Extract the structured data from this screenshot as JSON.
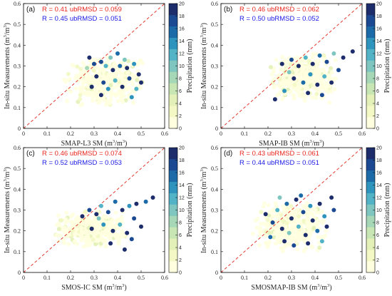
{
  "colors": {
    "stat_red": "#e8261e",
    "stat_blue": "#1a1ae6",
    "diagonal": "#e03a2e",
    "colormap": [
      "#ffffe0",
      "#f3f8c4",
      "#e3f1b8",
      "#c8e6b4",
      "#a6d8b8",
      "#7ec6bf",
      "#52b3c6",
      "#2e93bd",
      "#1d6aa8",
      "#1b4a92",
      "#1d2d6b"
    ]
  },
  "colorbar": {
    "label": "Precipitation (mm)",
    "ticks": [
      "0",
      "2",
      "4",
      "6",
      "8",
      "10",
      "12",
      "14",
      "16",
      "18",
      "20"
    ]
  },
  "chart_data": [
    {
      "type": "scatter",
      "panel_label": "(a)",
      "xlabel_main": "SMAP-L3 SM (m",
      "ylabel_main": "In-situ Measurements (m",
      "unit_sup": "3",
      "unit_mid": "/m",
      "unit_end": ")",
      "stat_red": "R = 0.41   ubRMSD = 0.059",
      "stat_blue": "R = 0.45   ubRMSD = 0.051",
      "xlim": [
        0,
        0.6
      ],
      "ylim": [
        0,
        0.6
      ],
      "xticks": [
        "0",
        "0.1",
        "0.2",
        "0.3",
        "0.4",
        "0.5",
        "0.6"
      ],
      "yticks": [
        "0",
        "0.1",
        "0.2",
        "0.3",
        "0.4",
        "0.5",
        "0.6"
      ],
      "cluster": {
        "x_range": [
          0.17,
          0.52
        ],
        "y_range": [
          0.1,
          0.35
        ]
      },
      "colored_points": [
        {
          "x": 0.28,
          "y": 0.34,
          "p": 19
        },
        {
          "x": 0.3,
          "y": 0.31,
          "p": 17
        },
        {
          "x": 0.33,
          "y": 0.32,
          "p": 18
        },
        {
          "x": 0.35,
          "y": 0.3,
          "p": 12
        },
        {
          "x": 0.38,
          "y": 0.28,
          "p": 20
        },
        {
          "x": 0.41,
          "y": 0.3,
          "p": 16
        },
        {
          "x": 0.43,
          "y": 0.33,
          "p": 9
        },
        {
          "x": 0.44,
          "y": 0.29,
          "p": 20
        },
        {
          "x": 0.47,
          "y": 0.31,
          "p": 14
        },
        {
          "x": 0.49,
          "y": 0.26,
          "p": 19
        },
        {
          "x": 0.31,
          "y": 0.25,
          "p": 20
        },
        {
          "x": 0.34,
          "y": 0.22,
          "p": 18
        },
        {
          "x": 0.36,
          "y": 0.19,
          "p": 13
        },
        {
          "x": 0.39,
          "y": 0.23,
          "p": 11
        },
        {
          "x": 0.42,
          "y": 0.2,
          "p": 20
        },
        {
          "x": 0.45,
          "y": 0.24,
          "p": 17
        },
        {
          "x": 0.48,
          "y": 0.19,
          "p": 12
        },
        {
          "x": 0.5,
          "y": 0.22,
          "p": 20
        },
        {
          "x": 0.37,
          "y": 0.34,
          "p": 10
        },
        {
          "x": 0.4,
          "y": 0.36,
          "p": 15
        },
        {
          "x": 0.33,
          "y": 0.16,
          "p": 19
        },
        {
          "x": 0.46,
          "y": 0.15,
          "p": 14
        },
        {
          "x": 0.27,
          "y": 0.29,
          "p": 8
        },
        {
          "x": 0.29,
          "y": 0.2,
          "p": 20
        }
      ]
    },
    {
      "type": "scatter",
      "panel_label": "(b)",
      "xlabel_main": "SMAP-IB SM (m",
      "ylabel_main": "In-situ Measurements (m",
      "unit_sup": "3",
      "unit_mid": "/m",
      "unit_end": ")",
      "stat_red": "R = 0.46   ubRMSD = 0.062",
      "stat_blue": "R = 0.50   ubRMSD = 0.052",
      "xlim": [
        0,
        0.6
      ],
      "ylim": [
        0,
        0.6
      ],
      "xticks": [
        "0",
        "0.1",
        "0.2",
        "0.3",
        "0.4",
        "0.5",
        "0.6"
      ],
      "yticks": [
        "0",
        "0.1",
        "0.2",
        "0.3",
        "0.4",
        "0.5",
        "0.6"
      ],
      "cluster": {
        "x_range": [
          0.2,
          0.5
        ],
        "y_range": [
          0.12,
          0.36
        ]
      },
      "colored_points": [
        {
          "x": 0.26,
          "y": 0.31,
          "p": 20
        },
        {
          "x": 0.3,
          "y": 0.33,
          "p": 17
        },
        {
          "x": 0.33,
          "y": 0.3,
          "p": 19
        },
        {
          "x": 0.36,
          "y": 0.34,
          "p": 12
        },
        {
          "x": 0.39,
          "y": 0.31,
          "p": 20
        },
        {
          "x": 0.42,
          "y": 0.35,
          "p": 15
        },
        {
          "x": 0.45,
          "y": 0.32,
          "p": 18
        },
        {
          "x": 0.48,
          "y": 0.36,
          "p": 9
        },
        {
          "x": 0.52,
          "y": 0.34,
          "p": 20
        },
        {
          "x": 0.56,
          "y": 0.37,
          "p": 19
        },
        {
          "x": 0.31,
          "y": 0.24,
          "p": 20
        },
        {
          "x": 0.35,
          "y": 0.22,
          "p": 16
        },
        {
          "x": 0.38,
          "y": 0.26,
          "p": 13
        },
        {
          "x": 0.41,
          "y": 0.21,
          "p": 20
        },
        {
          "x": 0.44,
          "y": 0.25,
          "p": 11
        },
        {
          "x": 0.47,
          "y": 0.22,
          "p": 19
        },
        {
          "x": 0.27,
          "y": 0.18,
          "p": 14
        },
        {
          "x": 0.37,
          "y": 0.17,
          "p": 20
        },
        {
          "x": 0.43,
          "y": 0.16,
          "p": 17
        },
        {
          "x": 0.23,
          "y": 0.14,
          "p": 20
        },
        {
          "x": 0.29,
          "y": 0.27,
          "p": 10
        },
        {
          "x": 0.5,
          "y": 0.28,
          "p": 18
        }
      ]
    },
    {
      "type": "scatter",
      "panel_label": "(c)",
      "xlabel_main": "SMOS-IC SM (m",
      "ylabel_main": "In-situ Measurements (m",
      "unit_sup": "3",
      "unit_mid": "/m",
      "unit_end": ")",
      "stat_red": "R = 0.46   ubRMSD = 0.074",
      "stat_blue": "R = 0.52   ubRMSD = 0.053",
      "xlim": [
        0,
        0.6
      ],
      "ylim": [
        0,
        0.6
      ],
      "xticks": [
        "0",
        "0.1",
        "0.2",
        "0.3",
        "0.4",
        "0.5",
        "0.6"
      ],
      "yticks": [
        "0",
        "0.1",
        "0.2",
        "0.3",
        "0.4",
        "0.5",
        "0.6"
      ],
      "cluster": {
        "x_range": [
          0.12,
          0.45
        ],
        "y_range": [
          0.12,
          0.3
        ]
      },
      "colored_points": [
        {
          "x": 0.25,
          "y": 0.27,
          "p": 20
        },
        {
          "x": 0.28,
          "y": 0.3,
          "p": 17
        },
        {
          "x": 0.31,
          "y": 0.28,
          "p": 19
        },
        {
          "x": 0.33,
          "y": 0.32,
          "p": 12
        },
        {
          "x": 0.36,
          "y": 0.29,
          "p": 18
        },
        {
          "x": 0.39,
          "y": 0.34,
          "p": 15
        },
        {
          "x": 0.42,
          "y": 0.3,
          "p": 20
        },
        {
          "x": 0.45,
          "y": 0.32,
          "p": 13
        },
        {
          "x": 0.48,
          "y": 0.33,
          "p": 19
        },
        {
          "x": 0.52,
          "y": 0.34,
          "p": 16
        },
        {
          "x": 0.55,
          "y": 0.36,
          "p": 20
        },
        {
          "x": 0.29,
          "y": 0.21,
          "p": 20
        },
        {
          "x": 0.34,
          "y": 0.23,
          "p": 14
        },
        {
          "x": 0.38,
          "y": 0.2,
          "p": 20
        },
        {
          "x": 0.41,
          "y": 0.23,
          "p": 11
        },
        {
          "x": 0.44,
          "y": 0.19,
          "p": 20
        },
        {
          "x": 0.47,
          "y": 0.26,
          "p": 18
        },
        {
          "x": 0.5,
          "y": 0.22,
          "p": 20
        },
        {
          "x": 0.37,
          "y": 0.14,
          "p": 19
        },
        {
          "x": 0.43,
          "y": 0.11,
          "p": 20
        },
        {
          "x": 0.46,
          "y": 0.16,
          "p": 17
        },
        {
          "x": 0.32,
          "y": 0.26,
          "p": 9
        }
      ]
    },
    {
      "type": "scatter",
      "panel_label": "(d)",
      "xlabel_main": "SMOSMAP-IB SM (m",
      "ylabel_main": "In-situ Measurements (m",
      "unit_sup": "3",
      "unit_mid": "/m",
      "unit_end": ")",
      "stat_red": "R = 0.43   ubRMSD = 0.061",
      "stat_blue": "R = 0.44   ubRMSD = 0.051",
      "xlim": [
        0,
        0.6
      ],
      "ylim": [
        0,
        0.6
      ],
      "xticks": [
        "0",
        "0.1",
        "0.2",
        "0.3",
        "0.4",
        "0.5",
        "0.6"
      ],
      "yticks": [
        "0",
        "0.1",
        "0.2",
        "0.3",
        "0.4",
        "0.5",
        "0.6"
      ],
      "cluster": {
        "x_range": [
          0.13,
          0.46
        ],
        "y_range": [
          0.1,
          0.35
        ]
      },
      "colored_points": [
        {
          "x": 0.19,
          "y": 0.28,
          "p": 20
        },
        {
          "x": 0.22,
          "y": 0.24,
          "p": 17
        },
        {
          "x": 0.24,
          "y": 0.3,
          "p": 12
        },
        {
          "x": 0.26,
          "y": 0.21,
          "p": 20
        },
        {
          "x": 0.28,
          "y": 0.33,
          "p": 15
        },
        {
          "x": 0.3,
          "y": 0.26,
          "p": 19
        },
        {
          "x": 0.32,
          "y": 0.35,
          "p": 20
        },
        {
          "x": 0.33,
          "y": 0.22,
          "p": 11
        },
        {
          "x": 0.35,
          "y": 0.29,
          "p": 18
        },
        {
          "x": 0.36,
          "y": 0.18,
          "p": 20
        },
        {
          "x": 0.38,
          "y": 0.32,
          "p": 14
        },
        {
          "x": 0.39,
          "y": 0.25,
          "p": 20
        },
        {
          "x": 0.41,
          "y": 0.2,
          "p": 16
        },
        {
          "x": 0.42,
          "y": 0.33,
          "p": 20
        },
        {
          "x": 0.44,
          "y": 0.27,
          "p": 13
        },
        {
          "x": 0.45,
          "y": 0.22,
          "p": 19
        },
        {
          "x": 0.47,
          "y": 0.36,
          "p": 20
        },
        {
          "x": 0.48,
          "y": 0.3,
          "p": 17
        },
        {
          "x": 0.27,
          "y": 0.15,
          "p": 20
        },
        {
          "x": 0.31,
          "y": 0.13,
          "p": 18
        },
        {
          "x": 0.37,
          "y": 0.14,
          "p": 20
        },
        {
          "x": 0.43,
          "y": 0.15,
          "p": 12
        },
        {
          "x": 0.21,
          "y": 0.17,
          "p": 16
        },
        {
          "x": 0.29,
          "y": 0.19,
          "p": 9
        },
        {
          "x": 0.34,
          "y": 0.37,
          "p": 15
        },
        {
          "x": 0.25,
          "y": 0.36,
          "p": 10
        }
      ]
    }
  ]
}
